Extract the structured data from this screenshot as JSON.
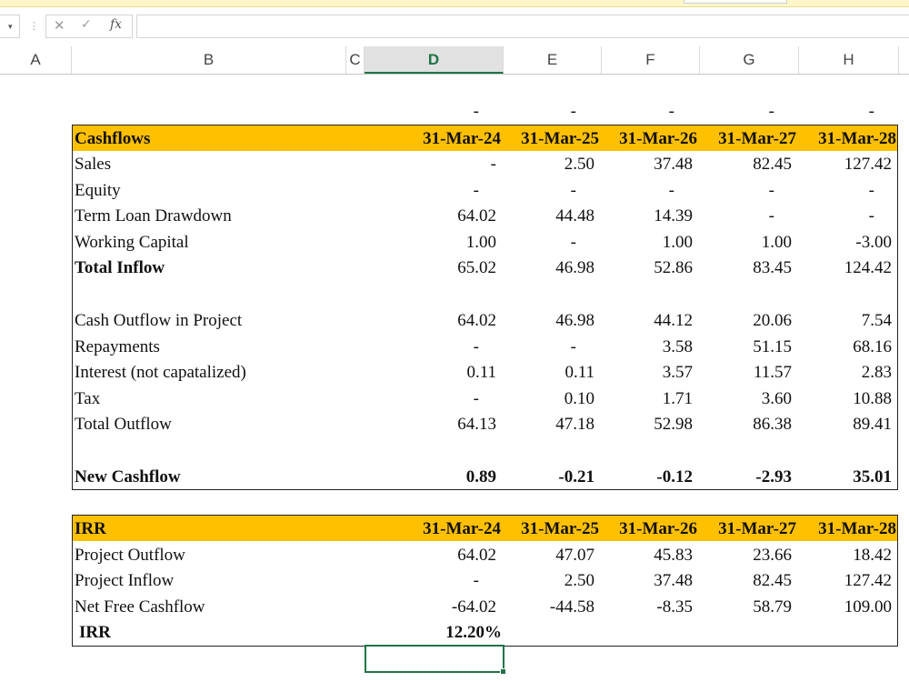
{
  "formula_bar": {
    "name_box_arrow": "▾",
    "separator": "⋮",
    "cancel": "✕",
    "enter": "✓",
    "fx": "fx",
    "formula": ""
  },
  "columns": [
    "A",
    "B",
    "C",
    "D",
    "E",
    "F",
    "G",
    "H"
  ],
  "selected_column": "D",
  "colors": {
    "header_fill": "#ffc000",
    "selection": "#217346"
  },
  "dash_row": [
    "-",
    "-",
    "-",
    "-",
    "-"
  ],
  "cashflows": {
    "header": [
      "Cashflows",
      "31-Mar-24",
      "31-Mar-25",
      "31-Mar-26",
      "31-Mar-27",
      "31-Mar-28"
    ],
    "rows": [
      {
        "label": "Sales",
        "values": [
          "-",
          "2.50",
          "37.48",
          "82.45",
          "127.42"
        ]
      },
      {
        "label": "Equity",
        "values": [
          "-",
          "-",
          "-",
          "-",
          "-"
        ]
      },
      {
        "label": "Term Loan Drawdown",
        "values": [
          "64.02",
          "44.48",
          "14.39",
          "-",
          "-"
        ]
      },
      {
        "label": "Working Capital",
        "values": [
          "1.00",
          "-",
          "1.00",
          "1.00",
          "-3.00"
        ]
      },
      {
        "label": "Total Inflow",
        "values": [
          "65.02",
          "46.98",
          "52.86",
          "83.45",
          "124.42"
        ]
      },
      {
        "label": "Cash Outflow in Project",
        "values": [
          "64.02",
          "46.98",
          "44.12",
          "20.06",
          "7.54"
        ]
      },
      {
        "label": "Repayments",
        "values": [
          "-",
          "-",
          "3.58",
          "51.15",
          "68.16"
        ]
      },
      {
        "label": "Interest (not capatalized)",
        "values": [
          "0.11",
          "0.11",
          "3.57",
          "11.57",
          "2.83"
        ]
      },
      {
        "label": "Tax",
        "values": [
          "-",
          "0.10",
          "1.71",
          "3.60",
          "10.88"
        ]
      },
      {
        "label": "Total Outflow",
        "values": [
          "64.13",
          "47.18",
          "52.98",
          "86.38",
          "89.41"
        ]
      },
      {
        "label": "New Cashflow",
        "values": [
          "0.89",
          "-0.21",
          "-0.12",
          "-2.93",
          "35.01"
        ]
      }
    ]
  },
  "irr_table": {
    "header": [
      "IRR",
      "31-Mar-24",
      "31-Mar-25",
      "31-Mar-26",
      "31-Mar-27",
      "31-Mar-28"
    ],
    "rows": [
      {
        "label": "Project Outflow",
        "values": [
          "64.02",
          "47.07",
          "45.83",
          "23.66",
          "18.42"
        ]
      },
      {
        "label": "Project Inflow",
        "values": [
          "-",
          "2.50",
          "37.48",
          "82.45",
          "127.42"
        ]
      },
      {
        "label": "Net Free Cashflow",
        "values": [
          "-64.02",
          "-44.58",
          "-8.35",
          "58.79",
          "109.00"
        ]
      }
    ],
    "irr_label": "IRR",
    "irr_value": "12.20%"
  }
}
